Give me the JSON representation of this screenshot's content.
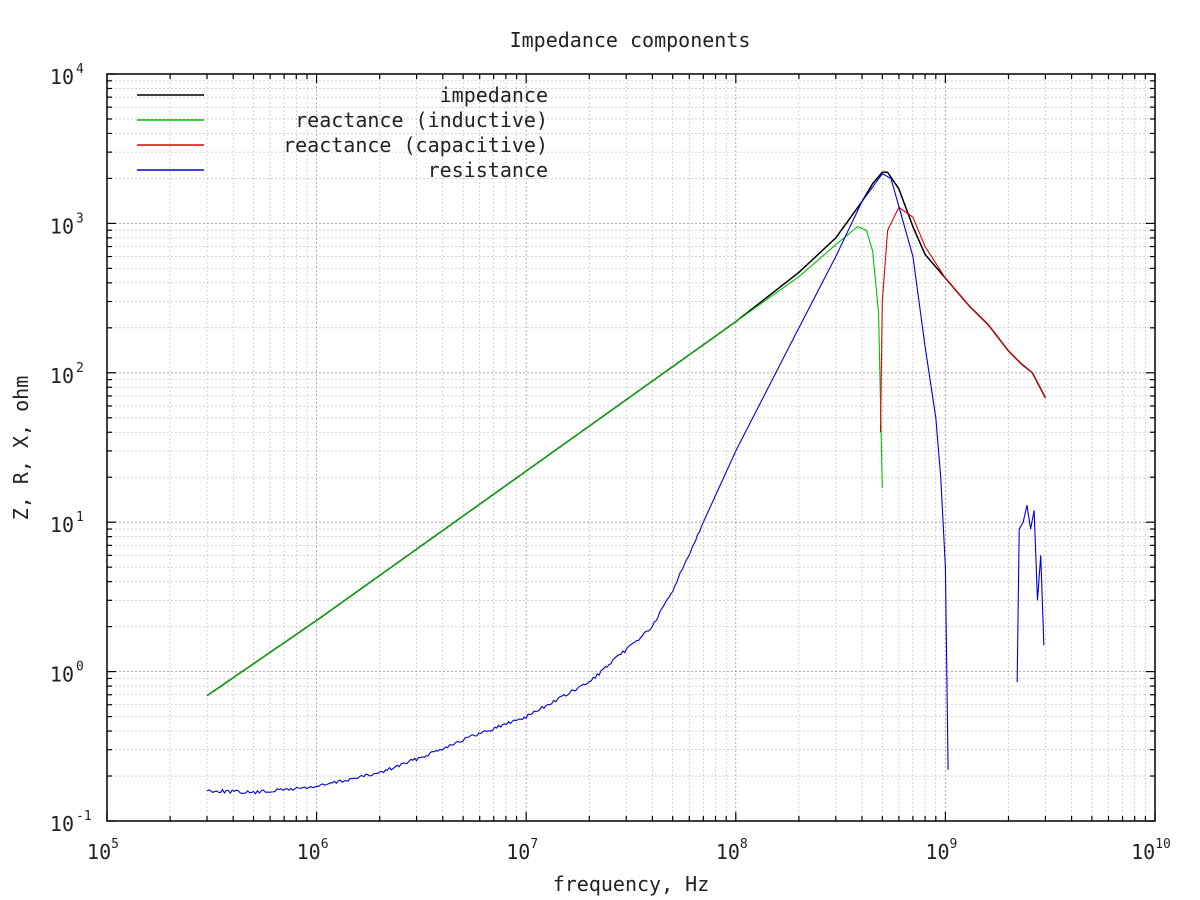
{
  "chart_data": {
    "type": "line",
    "title": "Impedance components",
    "xlabel": "frequency, Hz",
    "ylabel": "Z, R, X, ohm",
    "xscale": "log",
    "yscale": "log",
    "xlim": [
      100000,
      10000000000
    ],
    "ylim": [
      0.1,
      10000
    ],
    "x_ticks": [
      {
        "base": "10",
        "exp": "5"
      },
      {
        "base": "10",
        "exp": "6"
      },
      {
        "base": "10",
        "exp": "7"
      },
      {
        "base": "10",
        "exp": "8"
      },
      {
        "base": "10",
        "exp": "9"
      },
      {
        "base": "10",
        "exp": "10"
      }
    ],
    "y_ticks": [
      {
        "base": "10",
        "exp": "-1"
      },
      {
        "base": "10",
        "exp": "0"
      },
      {
        "base": "10",
        "exp": "1"
      },
      {
        "base": "10",
        "exp": "2"
      },
      {
        "base": "10",
        "exp": "3"
      },
      {
        "base": "10",
        "exp": "4"
      }
    ],
    "grid": true,
    "legend_position": "top-left",
    "series": [
      {
        "name": "impedance",
        "color": "#000000",
        "points": [
          [
            300000,
            0.69
          ],
          [
            1000000,
            2.2
          ],
          [
            10000000,
            22
          ],
          [
            100000000,
            220
          ],
          [
            200000000,
            470
          ],
          [
            300000000,
            800
          ],
          [
            400000000,
            1400
          ],
          [
            450000000,
            1850
          ],
          [
            500000000,
            2200
          ],
          [
            530000000,
            2200
          ],
          [
            600000000,
            1700
          ],
          [
            700000000,
            950
          ],
          [
            800000000,
            620
          ],
          [
            1000000000,
            430
          ],
          [
            1300000000,
            280
          ],
          [
            1600000000,
            210
          ],
          [
            2000000000,
            140
          ],
          [
            2300000000,
            115
          ],
          [
            2600000000,
            100
          ],
          [
            3000000000,
            68
          ]
        ]
      },
      {
        "name": "reactance (inductive)",
        "color": "#00c000",
        "points": [
          [
            300000,
            0.69
          ],
          [
            1000000,
            2.2
          ],
          [
            10000000,
            22
          ],
          [
            100000000,
            220
          ],
          [
            200000000,
            440
          ],
          [
            300000000,
            720
          ],
          [
            380000000,
            950
          ],
          [
            420000000,
            900
          ],
          [
            450000000,
            650
          ],
          [
            480000000,
            250
          ],
          [
            500000000,
            17
          ]
        ]
      },
      {
        "name": "reactance (capacitive)",
        "color": "#e00000",
        "points": [
          [
            490000000,
            40
          ],
          [
            500000000,
            300
          ],
          [
            530000000,
            900
          ],
          [
            600000000,
            1280
          ],
          [
            700000000,
            1100
          ],
          [
            800000000,
            700
          ],
          [
            1000000000,
            430
          ],
          [
            1300000000,
            280
          ],
          [
            1600000000,
            210
          ],
          [
            2000000000,
            140
          ],
          [
            2300000000,
            115
          ],
          [
            2600000000,
            100
          ],
          [
            3000000000,
            68
          ]
        ]
      },
      {
        "name": "resistance",
        "color": "#0000e0",
        "points": [
          [
            300000,
            0.16
          ],
          [
            500000,
            0.155
          ],
          [
            1000000,
            0.17
          ],
          [
            2000000,
            0.21
          ],
          [
            3000000,
            0.26
          ],
          [
            5000000,
            0.35
          ],
          [
            10000000,
            0.5
          ],
          [
            20000000,
            0.85
          ],
          [
            40000000,
            2.0
          ],
          [
            50000000,
            3.5
          ],
          [
            70000000,
            10
          ],
          [
            100000000,
            30
          ],
          [
            200000000,
            200
          ],
          [
            300000000,
            600
          ],
          [
            400000000,
            1400
          ],
          [
            500000000,
            2150
          ],
          [
            550000000,
            2000
          ],
          [
            700000000,
            600
          ],
          [
            800000000,
            150
          ],
          [
            900000000,
            50
          ],
          [
            950000000,
            20
          ],
          [
            1000000000,
            5
          ],
          [
            1030000000,
            0.22
          ]
        ]
      },
      {
        "name": "",
        "color": "#0000e0",
        "points": [
          [
            2200000000,
            0.85
          ],
          [
            2250000000,
            9
          ],
          [
            2350000000,
            10
          ],
          [
            2450000000,
            13
          ],
          [
            2550000000,
            9
          ],
          [
            2650000000,
            12
          ],
          [
            2750000000,
            3
          ],
          [
            2850000000,
            6
          ],
          [
            2950000000,
            1.5
          ]
        ]
      }
    ]
  }
}
